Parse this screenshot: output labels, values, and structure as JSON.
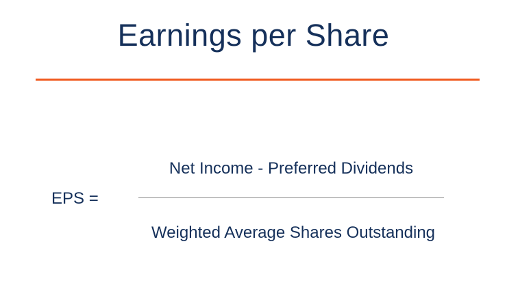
{
  "title": "Earnings per Share",
  "colors": {
    "text": "#15305a",
    "accent": "#f05a1e",
    "fraction_line": "#8a8a8a"
  },
  "formula": {
    "lhs": "EPS =",
    "numerator": "Net Income - Preferred Dividends",
    "denominator": "Weighted Average Shares Outstanding"
  }
}
